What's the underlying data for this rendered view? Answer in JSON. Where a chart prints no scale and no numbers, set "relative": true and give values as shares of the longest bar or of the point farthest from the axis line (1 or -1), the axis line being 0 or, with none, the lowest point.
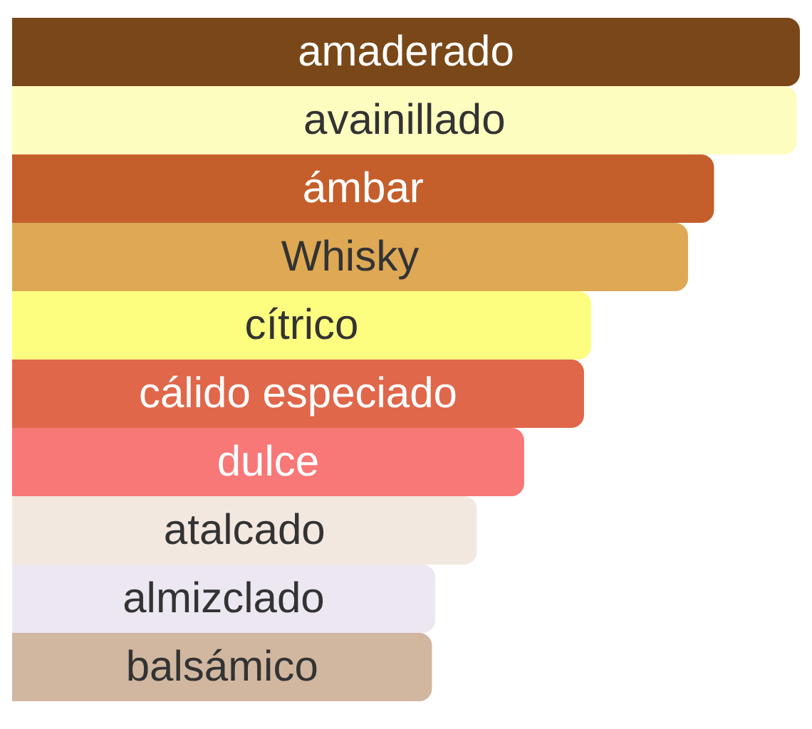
{
  "chart_data": {
    "type": "bar",
    "orientation": "horizontal",
    "relative": true,
    "categories": [
      "amaderado",
      "avainillado",
      "ámbar",
      "Whisky",
      "cítrico",
      "cálido especiado",
      "dulce",
      "atalcado",
      "almizclado",
      "balsámico"
    ],
    "values": [
      1.0,
      0.996,
      0.891,
      0.858,
      0.735,
      0.726,
      0.65,
      0.59,
      0.537,
      0.533
    ],
    "colors": [
      "#7a4818",
      "#fefdc0",
      "#c45f2c",
      "#dea855",
      "#fdfe80",
      "#e0674a",
      "#f77877",
      "#f3e8df",
      "#ece7f1",
      "#d1b7a0"
    ]
  }
}
